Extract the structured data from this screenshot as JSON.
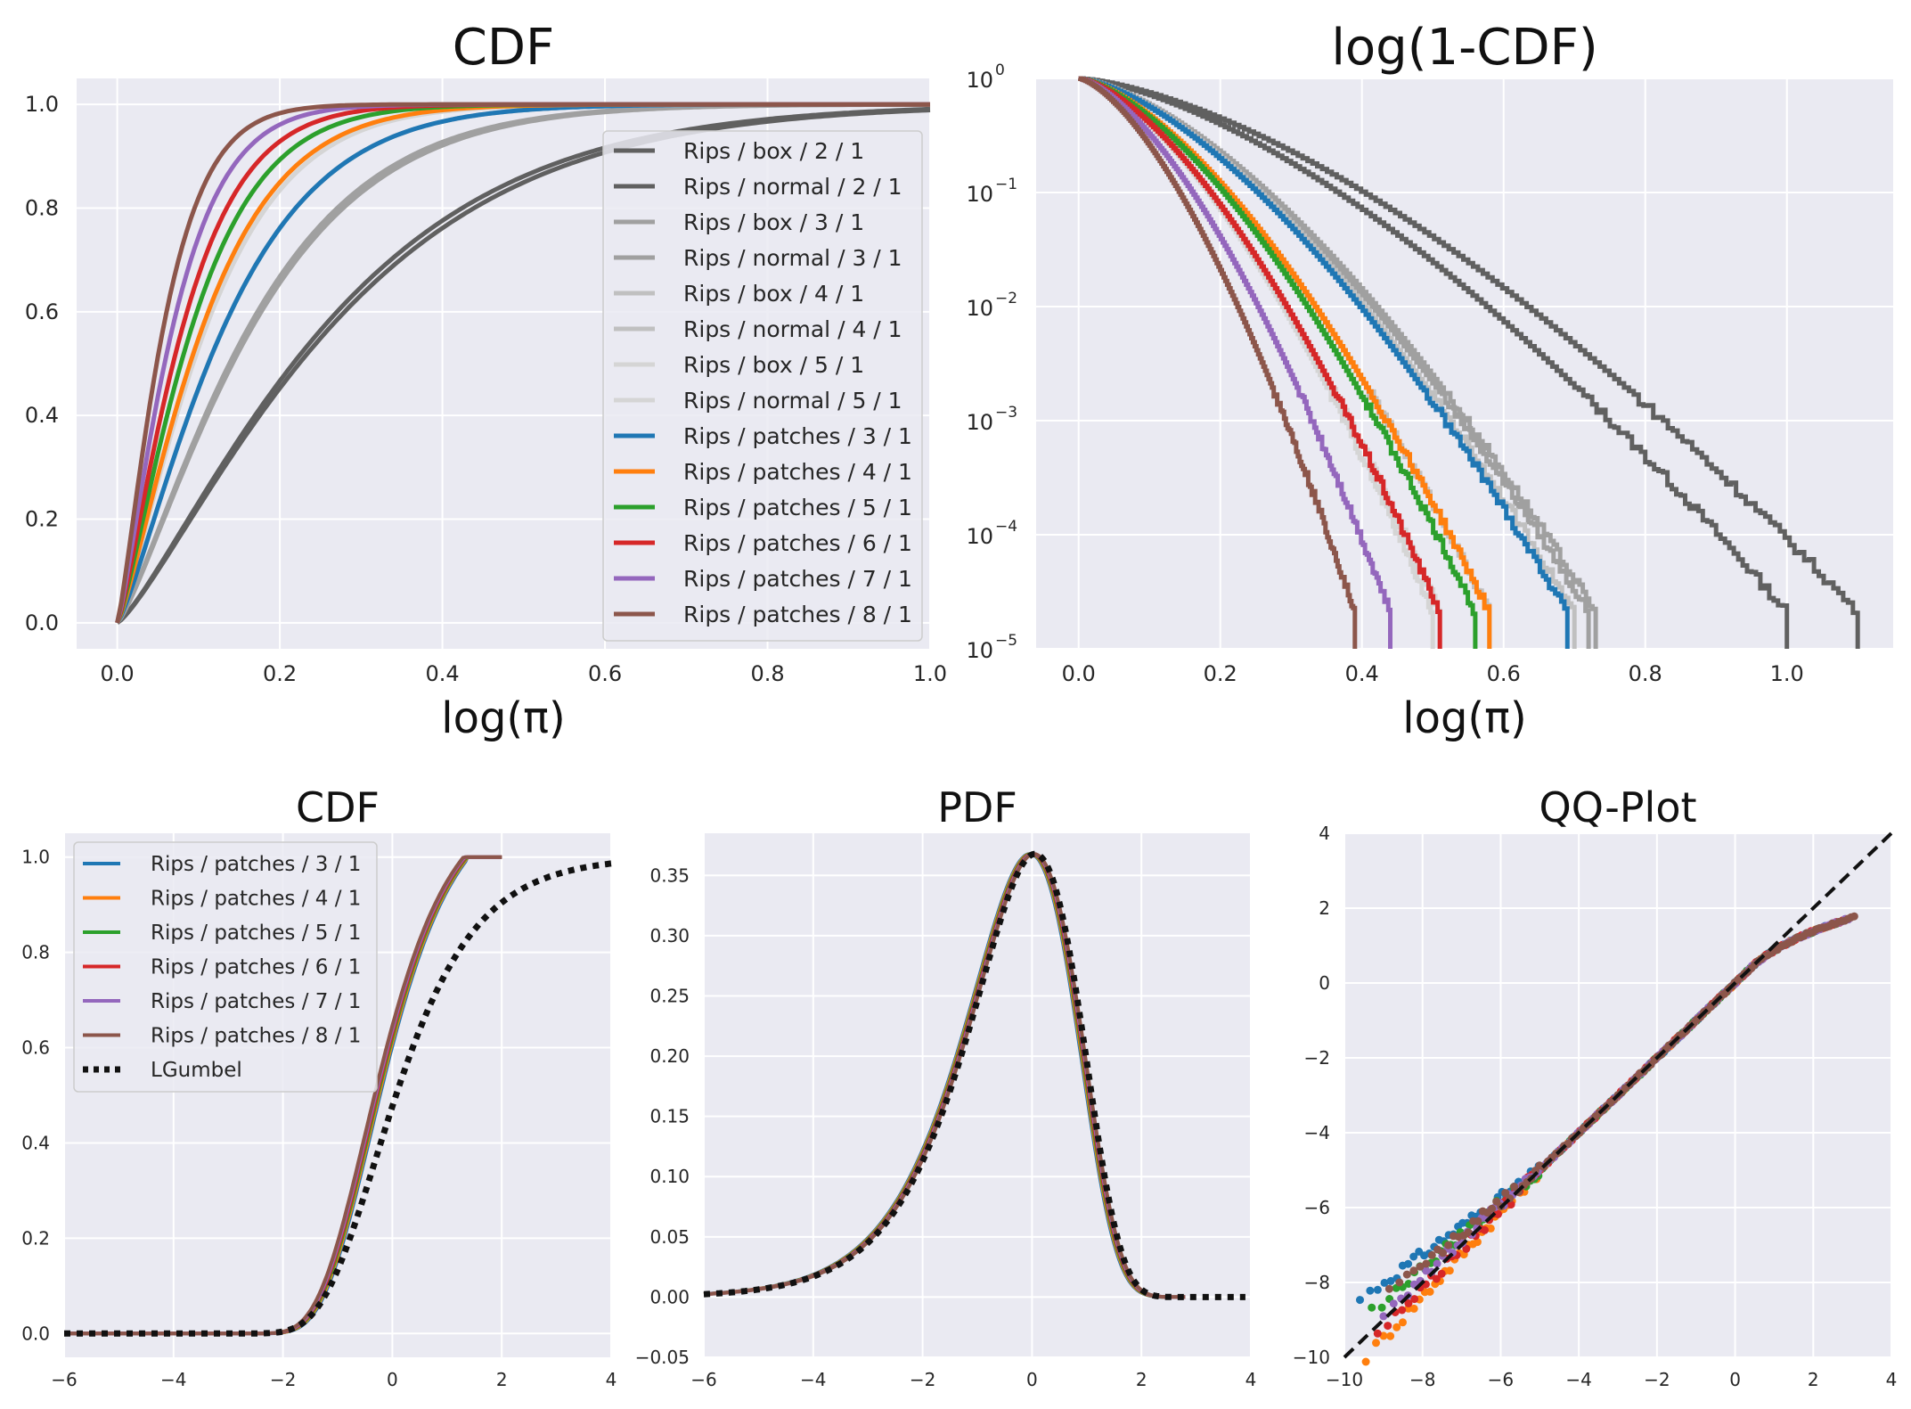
{
  "chart_data": [
    {
      "id": "cdf-top",
      "type": "line",
      "title": "CDF",
      "xlabel": "log(π)",
      "ylabel": "",
      "xlim": [
        -0.05,
        1.0
      ],
      "ylim": [
        -0.05,
        1.05
      ],
      "xticks": [
        "0.0",
        "0.2",
        "0.4",
        "0.6",
        "0.8",
        "1.0"
      ],
      "yticks": [
        "0.0",
        "0.2",
        "0.4",
        "0.6",
        "0.8",
        "1.0"
      ],
      "legend": "right",
      "series": [
        {
          "name": "Rips / box / 2 / 1",
          "color": "#606060",
          "scale": 0.3
        },
        {
          "name": "Rips / normal / 2 / 1",
          "color": "#606060",
          "scale": 0.29
        },
        {
          "name": "Rips / box / 3 / 1",
          "color": "#a0a0a0",
          "scale": 0.19
        },
        {
          "name": "Rips / normal / 3 / 1",
          "color": "#a0a0a0",
          "scale": 0.185
        },
        {
          "name": "Rips / box / 4 / 1",
          "color": "#c0c0c0",
          "scale": 0.15
        },
        {
          "name": "Rips / normal / 4 / 1",
          "color": "#c0c0c0",
          "scale": 0.15
        },
        {
          "name": "Rips / box / 5 / 1",
          "color": "#d5d5d5",
          "scale": 0.125
        },
        {
          "name": "Rips / normal / 5 / 1",
          "color": "#d5d5d5",
          "scale": 0.125
        },
        {
          "name": "Rips / patches / 3 / 1",
          "color": "#1f77b4",
          "scale": 0.15
        },
        {
          "name": "Rips / patches / 4 / 1",
          "color": "#ff7f0e",
          "scale": 0.12
        },
        {
          "name": "Rips / patches / 5 / 1",
          "color": "#2ca02c",
          "scale": 0.105
        },
        {
          "name": "Rips / patches / 6 / 1",
          "color": "#d62728",
          "scale": 0.092
        },
        {
          "name": "Rips / patches / 7 / 1",
          "color": "#9467bd",
          "scale": 0.078
        },
        {
          "name": "Rips / patches / 8 / 1",
          "color": "#8c564b",
          "scale": 0.065
        }
      ]
    },
    {
      "id": "survival-top",
      "type": "line",
      "title": "log(1-CDF)",
      "xlabel": "log(π)",
      "ylabel": "",
      "xlim": [
        -0.06,
        1.15
      ],
      "ylim_log10": [
        -5,
        0
      ],
      "xticks": [
        "0.0",
        "0.2",
        "0.4",
        "0.6",
        "0.8",
        "1.0"
      ],
      "ytick_exponents": [
        "0",
        "−1",
        "−2",
        "−3",
        "−4",
        "−5"
      ],
      "ytick_base": "10",
      "series": [
        {
          "name": "Rips / box / 2 / 1",
          "color": "#606060",
          "end": 1.0
        },
        {
          "name": "Rips / normal / 2 / 1",
          "color": "#606060",
          "end": 1.1
        },
        {
          "name": "Rips / box / 3 / 1",
          "color": "#a0a0a0",
          "end": 0.72
        },
        {
          "name": "Rips / normal / 3 / 1",
          "color": "#a0a0a0",
          "end": 0.73
        },
        {
          "name": "Rips / box / 4 / 1",
          "color": "#c0c0c0",
          "end": 0.7
        },
        {
          "name": "Rips / normal / 4 / 1",
          "color": "#c0c0c0",
          "end": 0.58
        },
        {
          "name": "Rips / box / 5 / 1",
          "color": "#d5d5d5",
          "end": 0.5
        },
        {
          "name": "Rips / normal / 5 / 1",
          "color": "#d5d5d5",
          "end": 0.51
        },
        {
          "name": "Rips / patches / 3 / 1",
          "color": "#1f77b4",
          "end": 0.69
        },
        {
          "name": "Rips / patches / 4 / 1",
          "color": "#ff7f0e",
          "end": 0.58
        },
        {
          "name": "Rips / patches / 5 / 1",
          "color": "#2ca02c",
          "end": 0.56
        },
        {
          "name": "Rips / patches / 6 / 1",
          "color": "#d62728",
          "end": 0.51
        },
        {
          "name": "Rips / patches / 7 / 1",
          "color": "#9467bd",
          "end": 0.44
        },
        {
          "name": "Rips / patches / 8 / 1",
          "color": "#8c564b",
          "end": 0.39
        }
      ]
    },
    {
      "id": "cdf-bottom",
      "type": "line",
      "title": "CDF",
      "xlim": [
        -6,
        4
      ],
      "ylim": [
        -0.05,
        1.05
      ],
      "xticks": [
        "−6",
        "−4",
        "−2",
        "0",
        "2",
        "4"
      ],
      "yticks": [
        "0.0",
        "0.2",
        "0.4",
        "0.6",
        "0.8",
        "1.0"
      ],
      "legend": "top-left",
      "series": [
        {
          "name": "Rips / patches / 3 / 1",
          "color": "#1f77b4"
        },
        {
          "name": "Rips / patches / 4 / 1",
          "color": "#ff7f0e"
        },
        {
          "name": "Rips / patches / 5 / 1",
          "color": "#2ca02c"
        },
        {
          "name": "Rips / patches / 6 / 1",
          "color": "#d62728"
        },
        {
          "name": "Rips / patches / 7 / 1",
          "color": "#9467bd"
        },
        {
          "name": "Rips / patches / 8 / 1",
          "color": "#8c564b"
        },
        {
          "name": "LGumbel",
          "color": "#111111",
          "style": "dotted"
        }
      ]
    },
    {
      "id": "pdf-bottom",
      "type": "line",
      "title": "PDF",
      "xlim": [
        -6,
        4
      ],
      "ylim": [
        -0.05,
        0.385
      ],
      "xticks": [
        "−6",
        "−4",
        "−2",
        "0",
        "2",
        "4"
      ],
      "yticks": [
        "−0.05",
        "0.00",
        "0.05",
        "0.10",
        "0.15",
        "0.20",
        "0.25",
        "0.30",
        "0.35"
      ],
      "series": [
        {
          "name": "Rips / patches / 3 / 1",
          "color": "#1f77b4"
        },
        {
          "name": "Rips / patches / 4 / 1",
          "color": "#ff7f0e"
        },
        {
          "name": "Rips / patches / 5 / 1",
          "color": "#2ca02c"
        },
        {
          "name": "Rips / patches / 6 / 1",
          "color": "#d62728"
        },
        {
          "name": "Rips / patches / 7 / 1",
          "color": "#9467bd"
        },
        {
          "name": "Rips / patches / 8 / 1",
          "color": "#8c564b"
        },
        {
          "name": "LGumbel",
          "color": "#111111",
          "style": "dotted"
        }
      ]
    },
    {
      "id": "qq-bottom",
      "type": "scatter",
      "title": "QQ-Plot",
      "xlim": [
        -10,
        4
      ],
      "ylim": [
        -10,
        4
      ],
      "xticks": [
        "−10",
        "−8",
        "−6",
        "−4",
        "−2",
        "0",
        "2",
        "4"
      ],
      "yticks": [
        "−10",
        "−8",
        "−6",
        "−4",
        "−2",
        "0",
        "2",
        "4"
      ],
      "reference_line": "y = x",
      "series": [
        {
          "name": "Rips / patches / 3 / 1",
          "color": "#1f77b4"
        },
        {
          "name": "Rips / patches / 4 / 1",
          "color": "#ff7f0e"
        },
        {
          "name": "Rips / patches / 5 / 1",
          "color": "#2ca02c"
        },
        {
          "name": "Rips / patches / 6 / 1",
          "color": "#d62728"
        },
        {
          "name": "Rips / patches / 7 / 1",
          "color": "#9467bd"
        },
        {
          "name": "Rips / patches / 8 / 1",
          "color": "#8c564b"
        }
      ]
    }
  ]
}
